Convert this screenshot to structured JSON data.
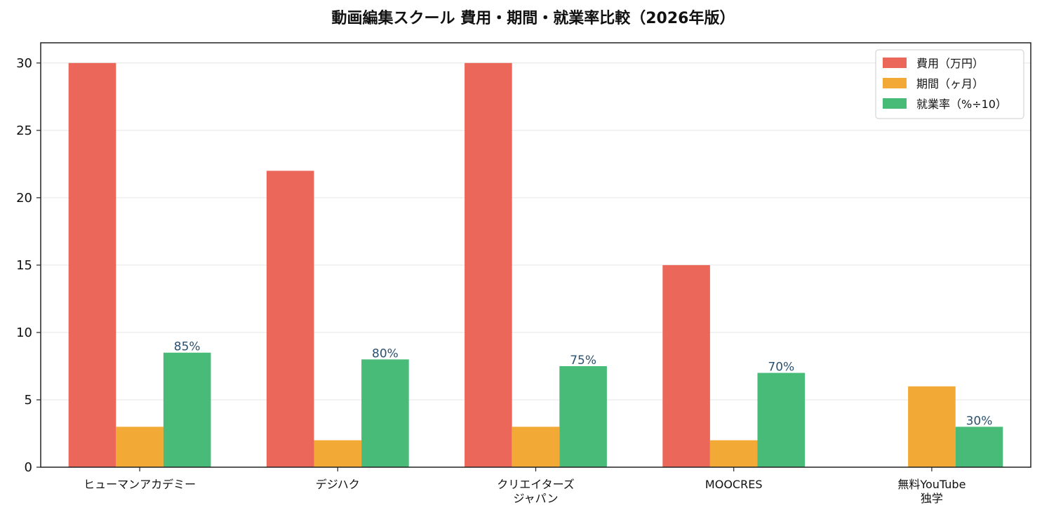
{
  "chart_data": {
    "type": "bar",
    "title": "動画編集スクール 費用・期間・就業率比較（2026年版）",
    "xlabel": "",
    "ylabel": "",
    "ylim": [
      0,
      31.5
    ],
    "yticks": [
      0,
      5,
      10,
      15,
      20,
      25,
      30
    ],
    "grid": "y",
    "legend_position": "top-right",
    "categories": [
      [
        "ヒューマンアカデミー"
      ],
      [
        "デジハク"
      ],
      [
        "クリエイターズ",
        "ジャパン"
      ],
      [
        "MOOCRES"
      ],
      [
        "無料YouTube",
        "独学"
      ]
    ],
    "series": [
      {
        "name": "費用（万円）",
        "color": "#EB675A",
        "values": [
          30,
          22,
          30,
          15,
          0
        ]
      },
      {
        "name": "期間（ヶ月）",
        "color": "#F2A935",
        "values": [
          3,
          2,
          3,
          2,
          6
        ]
      },
      {
        "name": "就業率（%÷10）",
        "color": "#48BB78",
        "values": [
          8.5,
          8,
          7.5,
          7,
          3
        ],
        "labels": [
          "85%",
          "80%",
          "75%",
          "70%",
          "30%"
        ],
        "label_color": "#2B5170"
      }
    ]
  }
}
